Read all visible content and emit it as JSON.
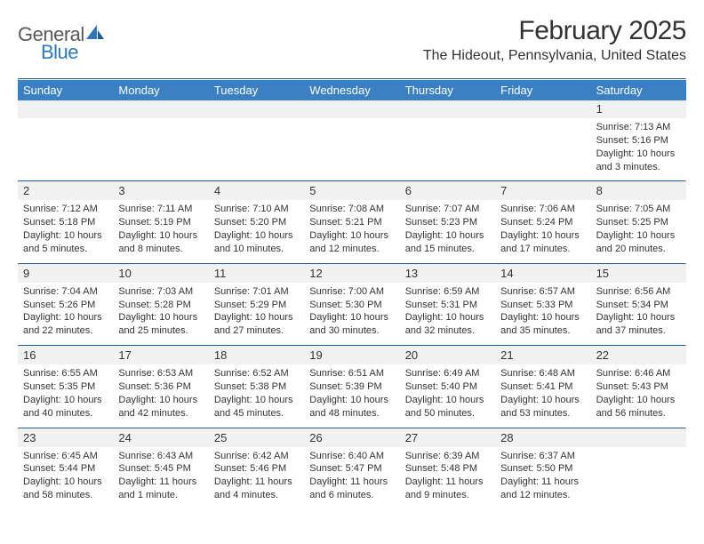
{
  "logo": {
    "text1": "General",
    "text2": "Blue"
  },
  "title": "February 2025",
  "location": "The Hideout, Pennsylvania, United States",
  "colors": {
    "header_bg": "#3a80c3",
    "header_text": "#ffffff",
    "rule": "#2a5f93",
    "body_text": "#333333",
    "blank_bg": "#f1f1f1",
    "logo_gray": "#5a5a5a",
    "logo_blue": "#2f77bb"
  },
  "day_names": [
    "Sunday",
    "Monday",
    "Tuesday",
    "Wednesday",
    "Thursday",
    "Friday",
    "Saturday"
  ],
  "weeks": [
    [
      null,
      null,
      null,
      null,
      null,
      null,
      {
        "n": "1",
        "sunrise": "7:13 AM",
        "sunset": "5:16 PM",
        "day_h": "10",
        "day_m": "3"
      }
    ],
    [
      {
        "n": "2",
        "sunrise": "7:12 AM",
        "sunset": "5:18 PM",
        "day_h": "10",
        "day_m": "5"
      },
      {
        "n": "3",
        "sunrise": "7:11 AM",
        "sunset": "5:19 PM",
        "day_h": "10",
        "day_m": "8"
      },
      {
        "n": "4",
        "sunrise": "7:10 AM",
        "sunset": "5:20 PM",
        "day_h": "10",
        "day_m": "10"
      },
      {
        "n": "5",
        "sunrise": "7:08 AM",
        "sunset": "5:21 PM",
        "day_h": "10",
        "day_m": "12"
      },
      {
        "n": "6",
        "sunrise": "7:07 AM",
        "sunset": "5:23 PM",
        "day_h": "10",
        "day_m": "15"
      },
      {
        "n": "7",
        "sunrise": "7:06 AM",
        "sunset": "5:24 PM",
        "day_h": "10",
        "day_m": "17"
      },
      {
        "n": "8",
        "sunrise": "7:05 AM",
        "sunset": "5:25 PM",
        "day_h": "10",
        "day_m": "20"
      }
    ],
    [
      {
        "n": "9",
        "sunrise": "7:04 AM",
        "sunset": "5:26 PM",
        "day_h": "10",
        "day_m": "22"
      },
      {
        "n": "10",
        "sunrise": "7:03 AM",
        "sunset": "5:28 PM",
        "day_h": "10",
        "day_m": "25"
      },
      {
        "n": "11",
        "sunrise": "7:01 AM",
        "sunset": "5:29 PM",
        "day_h": "10",
        "day_m": "27"
      },
      {
        "n": "12",
        "sunrise": "7:00 AM",
        "sunset": "5:30 PM",
        "day_h": "10",
        "day_m": "30"
      },
      {
        "n": "13",
        "sunrise": "6:59 AM",
        "sunset": "5:31 PM",
        "day_h": "10",
        "day_m": "32"
      },
      {
        "n": "14",
        "sunrise": "6:57 AM",
        "sunset": "5:33 PM",
        "day_h": "10",
        "day_m": "35"
      },
      {
        "n": "15",
        "sunrise": "6:56 AM",
        "sunset": "5:34 PM",
        "day_h": "10",
        "day_m": "37"
      }
    ],
    [
      {
        "n": "16",
        "sunrise": "6:55 AM",
        "sunset": "5:35 PM",
        "day_h": "10",
        "day_m": "40"
      },
      {
        "n": "17",
        "sunrise": "6:53 AM",
        "sunset": "5:36 PM",
        "day_h": "10",
        "day_m": "42"
      },
      {
        "n": "18",
        "sunrise": "6:52 AM",
        "sunset": "5:38 PM",
        "day_h": "10",
        "day_m": "45"
      },
      {
        "n": "19",
        "sunrise": "6:51 AM",
        "sunset": "5:39 PM",
        "day_h": "10",
        "day_m": "48"
      },
      {
        "n": "20",
        "sunrise": "6:49 AM",
        "sunset": "5:40 PM",
        "day_h": "10",
        "day_m": "50"
      },
      {
        "n": "21",
        "sunrise": "6:48 AM",
        "sunset": "5:41 PM",
        "day_h": "10",
        "day_m": "53"
      },
      {
        "n": "22",
        "sunrise": "6:46 AM",
        "sunset": "5:43 PM",
        "day_h": "10",
        "day_m": "56"
      }
    ],
    [
      {
        "n": "23",
        "sunrise": "6:45 AM",
        "sunset": "5:44 PM",
        "day_h": "10",
        "day_m": "58"
      },
      {
        "n": "24",
        "sunrise": "6:43 AM",
        "sunset": "5:45 PM",
        "day_h": "11",
        "day_m": "1",
        "minute_word": "minute"
      },
      {
        "n": "25",
        "sunrise": "6:42 AM",
        "sunset": "5:46 PM",
        "day_h": "11",
        "day_m": "4"
      },
      {
        "n": "26",
        "sunrise": "6:40 AM",
        "sunset": "5:47 PM",
        "day_h": "11",
        "day_m": "6"
      },
      {
        "n": "27",
        "sunrise": "6:39 AM",
        "sunset": "5:48 PM",
        "day_h": "11",
        "day_m": "9"
      },
      {
        "n": "28",
        "sunrise": "6:37 AM",
        "sunset": "5:50 PM",
        "day_h": "11",
        "day_m": "12"
      },
      null
    ]
  ],
  "labels": {
    "sunrise": "Sunrise:",
    "sunset": "Sunset:",
    "daylight": "Daylight:",
    "hours": "hours",
    "and": "and",
    "minutes": "minutes."
  }
}
